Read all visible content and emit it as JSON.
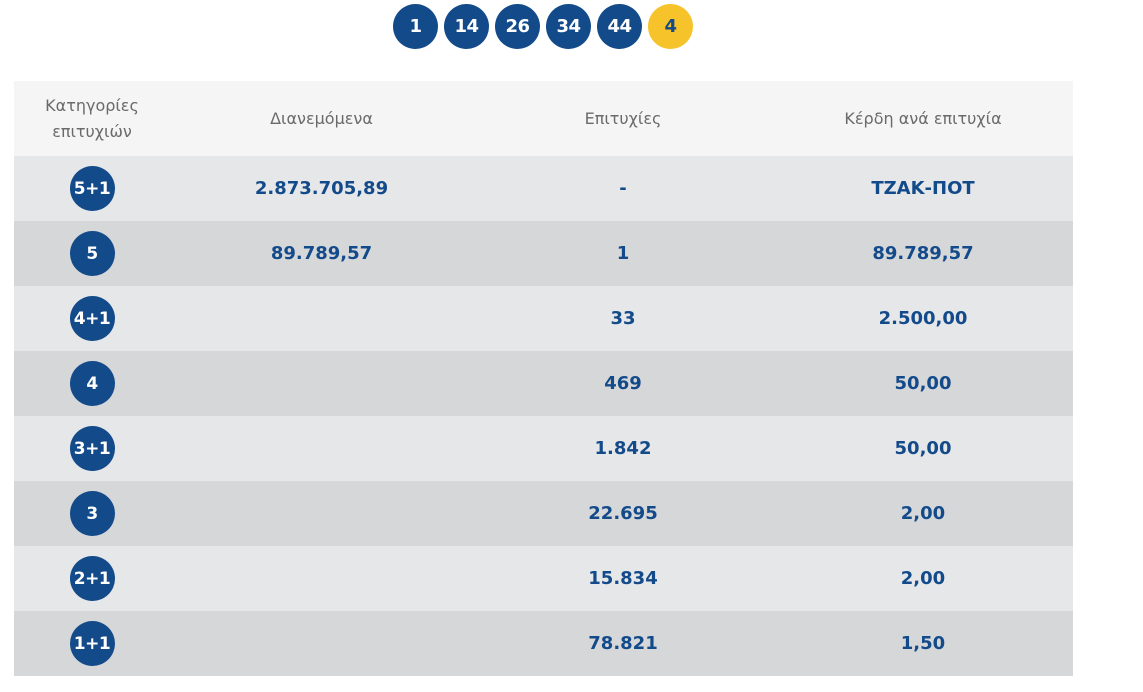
{
  "drawn_numbers": {
    "main": [
      "1",
      "14",
      "26",
      "34",
      "44"
    ],
    "joker": "4",
    "colors": {
      "main": "#134a8a",
      "joker": "#f6c32a"
    }
  },
  "table": {
    "headers": {
      "category": "Κατηγορίες επιτυχιών",
      "distributed": "Διανεμόμενα",
      "winners": "Επιτυχίες",
      "prize_per_winner": "Κέρδη ανά επιτυχία"
    },
    "rows": [
      {
        "category": "5+1",
        "distributed": "2.873.705,89",
        "winners": "-",
        "prize": "ΤΖΑΚ-ΠΟΤ"
      },
      {
        "category": "5",
        "distributed": "89.789,57",
        "winners": "1",
        "prize": "89.789,57"
      },
      {
        "category": "4+1",
        "distributed": "",
        "winners": "33",
        "prize": "2.500,00"
      },
      {
        "category": "4",
        "distributed": "",
        "winners": "469",
        "prize": "50,00"
      },
      {
        "category": "3+1",
        "distributed": "",
        "winners": "1.842",
        "prize": "50,00"
      },
      {
        "category": "3",
        "distributed": "",
        "winners": "22.695",
        "prize": "2,00"
      },
      {
        "category": "2+1",
        "distributed": "",
        "winners": "15.834",
        "prize": "2,00"
      },
      {
        "category": "1+1",
        "distributed": "",
        "winners": "78.821",
        "prize": "1,50"
      }
    ]
  }
}
